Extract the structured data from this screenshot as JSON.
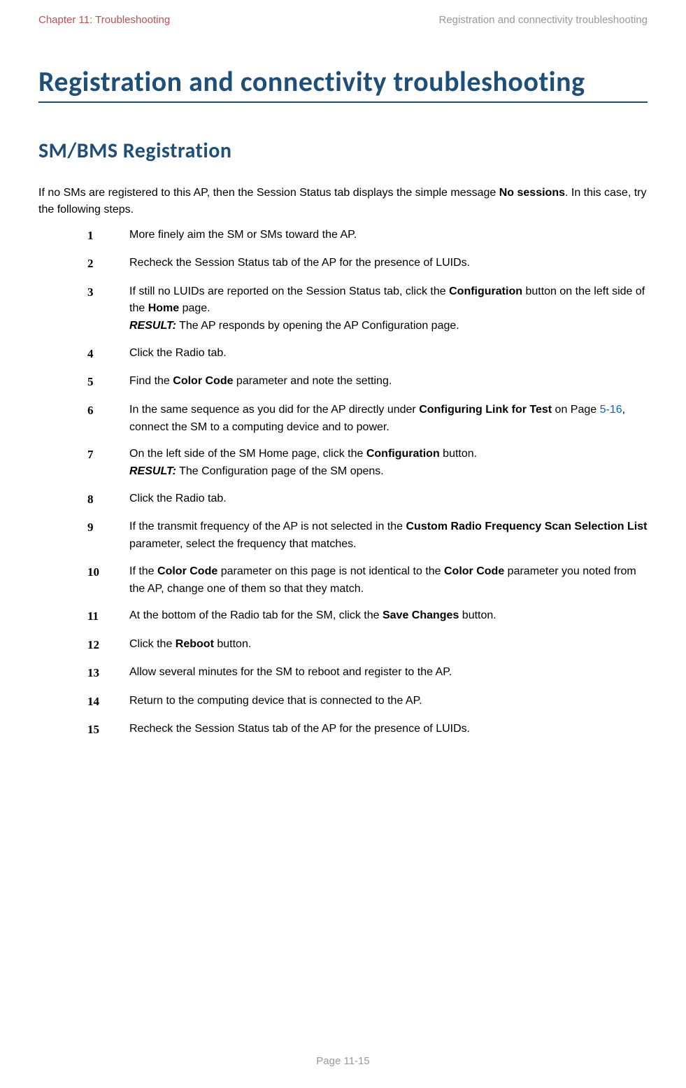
{
  "header": {
    "left": "Chapter 11:  Troubleshooting",
    "right": "Registration and connectivity troubleshooting"
  },
  "main_title": "Registration and connectivity troubleshooting",
  "section_title": "SM/BMS Registration",
  "intro": {
    "prefix": "If no SMs are registered to this AP, then the Session Status tab displays the simple message ",
    "bold1": "No sessions",
    "suffix": ". In this case, try the following steps."
  },
  "steps": [
    {
      "num": "1",
      "parts": [
        {
          "text": "More finely aim the SM or SMs toward the AP."
        }
      ]
    },
    {
      "num": "2",
      "parts": [
        {
          "text": "Recheck the Session Status tab of the AP for the presence of LUIDs."
        }
      ]
    },
    {
      "num": "3",
      "parts": [
        {
          "text": "If still no LUIDs are reported on the Session Status tab, click the "
        },
        {
          "text": "Configuration",
          "bold": true
        },
        {
          "text": " button on the left side of the "
        },
        {
          "text": "Home",
          "bold": true
        },
        {
          "text": " page."
        },
        {
          "br": true
        },
        {
          "text": "RESULT:",
          "italic": true
        },
        {
          "text": " The AP responds by opening the AP Configuration page."
        }
      ]
    },
    {
      "num": "4",
      "parts": [
        {
          "text": "Click the Radio tab."
        }
      ]
    },
    {
      "num": "5",
      "parts": [
        {
          "text": "Find the "
        },
        {
          "text": "Color Code",
          "bold": true
        },
        {
          "text": " parameter and note the setting."
        }
      ]
    },
    {
      "num": "6",
      "parts": [
        {
          "text": "In the same sequence as you did for the AP directly under "
        },
        {
          "text": "Configuring Link for Test",
          "bold": true
        },
        {
          "text": " on Page "
        },
        {
          "text": "5-16",
          "link": true
        },
        {
          "text": ", connect the SM to a computing device and to power."
        }
      ]
    },
    {
      "num": "7",
      "parts": [
        {
          "text": "On the left side of the SM Home page, click the "
        },
        {
          "text": "Configuration",
          "bold": true
        },
        {
          "text": " button."
        },
        {
          "br": true
        },
        {
          "text": "RESULT:",
          "italic": true
        },
        {
          "text": " The Configuration page of the SM opens."
        }
      ]
    },
    {
      "num": "8",
      "parts": [
        {
          "text": "Click the Radio tab."
        }
      ]
    },
    {
      "num": "9",
      "parts": [
        {
          "text": "If the transmit frequency of the AP is not selected in the "
        },
        {
          "text": "Custom Radio Frequency Scan Selection List",
          "bold": true
        },
        {
          "text": " parameter, select the frequency that matches."
        }
      ]
    },
    {
      "num": "10",
      "parts": [
        {
          "text": "If the "
        },
        {
          "text": "Color Code",
          "bold": true
        },
        {
          "text": " parameter on this page is not identical to the "
        },
        {
          "text": "Color Code",
          "bold": true
        },
        {
          "text": " parameter you noted from the AP, change one of them so that they match."
        }
      ]
    },
    {
      "num": "11",
      "parts": [
        {
          "text": "At the bottom of the Radio tab for the SM, click the "
        },
        {
          "text": "Save Changes",
          "bold": true
        },
        {
          "text": " button."
        }
      ]
    },
    {
      "num": "12",
      "parts": [
        {
          "text": "Click the "
        },
        {
          "text": "Reboot",
          "bold": true
        },
        {
          "text": " button."
        }
      ]
    },
    {
      "num": "13",
      "parts": [
        {
          "text": "Allow several minutes for the SM to reboot and register to the AP."
        }
      ]
    },
    {
      "num": "14",
      "parts": [
        {
          "text": "Return to the computing device that is connected to the AP."
        }
      ]
    },
    {
      "num": "15",
      "parts": [
        {
          "text": "Recheck the Session Status tab of the AP for the presence of LUIDs."
        }
      ]
    }
  ],
  "footer": "Page 11-15",
  "colors": {
    "title_color": "#1f4e79",
    "chapter_color": "#c0504d",
    "header_right_color": "#999999",
    "link_color": "#0563c1",
    "text_color": "#000000",
    "footer_color": "#999999",
    "background": "#ffffff"
  },
  "typography": {
    "body_font": "Arial, Helvetica, sans-serif",
    "title_font": "Calibri, Tahoma, sans-serif",
    "main_title_size": 40,
    "section_title_size": 30,
    "body_size": 16,
    "header_size": 15
  }
}
